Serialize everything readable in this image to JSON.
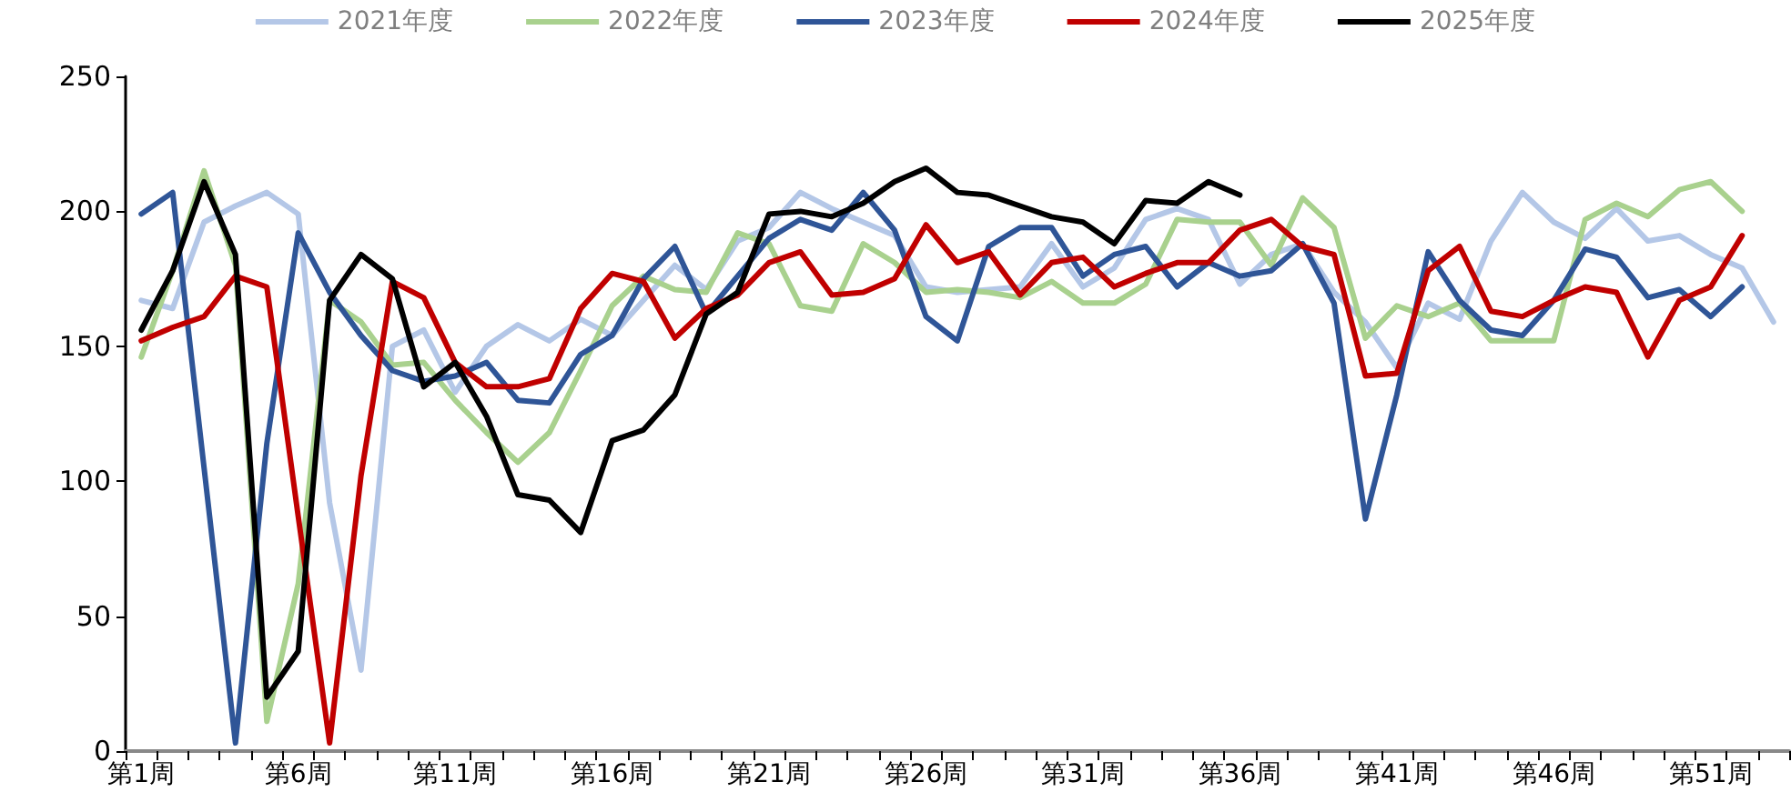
{
  "chart_data": {
    "type": "line",
    "categories": [
      "第1周",
      null,
      null,
      null,
      null,
      "第6周",
      null,
      null,
      null,
      null,
      "第11周",
      null,
      null,
      null,
      null,
      "第16周",
      null,
      null,
      null,
      null,
      "第21周",
      null,
      null,
      null,
      null,
      "第26周",
      null,
      null,
      null,
      null,
      "第31周",
      null,
      null,
      null,
      null,
      "第36周",
      null,
      null,
      null,
      null,
      "第41周",
      null,
      null,
      null,
      null,
      "第46周",
      null,
      null,
      null,
      null,
      "第51周",
      null,
      null
    ],
    "series": [
      {
        "name": "2021年度",
        "color": "#b4c7e7",
        "values": [
          167,
          164,
          196,
          202,
          207,
          199,
          92,
          30,
          150,
          156,
          133,
          150,
          158,
          152,
          160,
          154,
          167,
          180,
          171,
          189,
          194,
          207,
          201,
          196,
          191,
          172,
          170,
          171,
          172,
          188,
          172,
          179,
          197,
          201,
          197,
          173,
          184,
          188,
          170,
          159,
          142,
          166,
          160,
          189,
          207,
          196,
          190,
          201,
          189,
          191,
          184,
          179,
          159
        ]
      },
      {
        "name": "2022年度",
        "color": "#a9d18e",
        "values": [
          146,
          178,
          215,
          180,
          11,
          62,
          167,
          159,
          143,
          144,
          130,
          118,
          107,
          118,
          141,
          165,
          176,
          171,
          170,
          192,
          188,
          165,
          163,
          188,
          181,
          170,
          171,
          170,
          168,
          174,
          166,
          166,
          173,
          197,
          196,
          196,
          180,
          205,
          194,
          153,
          165,
          161,
          166,
          152,
          152,
          152,
          197,
          203,
          198,
          208,
          211,
          200,
          null
        ]
      },
      {
        "name": "2023年度",
        "color": "#2f5597",
        "values": [
          199,
          207,
          105,
          3,
          114,
          192,
          170,
          154,
          141,
          137,
          139,
          144,
          130,
          129,
          147,
          154,
          175,
          187,
          162,
          176,
          190,
          197,
          193,
          207,
          193,
          161,
          152,
          187,
          194,
          194,
          176,
          184,
          187,
          172,
          181,
          176,
          178,
          188,
          166,
          86,
          132,
          185,
          167,
          156,
          154,
          167,
          186,
          183,
          168,
          171,
          161,
          172,
          null
        ]
      },
      {
        "name": "2024年度",
        "color": "#c00000",
        "values": [
          152,
          157,
          161,
          176,
          172,
          87,
          3,
          102,
          174,
          168,
          144,
          135,
          135,
          138,
          164,
          177,
          174,
          153,
          164,
          169,
          181,
          185,
          169,
          170,
          175,
          195,
          181,
          185,
          169,
          181,
          183,
          172,
          177,
          181,
          181,
          193,
          197,
          187,
          184,
          139,
          140,
          178,
          187,
          163,
          161,
          167,
          172,
          170,
          146,
          167,
          172,
          191,
          null
        ]
      },
      {
        "name": "2025年度",
        "color": "#000000",
        "values": [
          156,
          178,
          211,
          184,
          20,
          37,
          167,
          184,
          175,
          135,
          144,
          124,
          95,
          93,
          81,
          115,
          119,
          132,
          162,
          170,
          199,
          200,
          198,
          203,
          211,
          216,
          207,
          206,
          202,
          198,
          196,
          188,
          204,
          203,
          211,
          206,
          null,
          null,
          null,
          null,
          null,
          null,
          null,
          null,
          null,
          null,
          null,
          null,
          null,
          null,
          null,
          null,
          null
        ]
      }
    ],
    "ylim": [
      0,
      250
    ],
    "yticks": [
      0,
      50,
      100,
      150,
      200,
      250
    ],
    "grid": false,
    "legend": "top",
    "marker": "none",
    "line_style": "solid"
  }
}
